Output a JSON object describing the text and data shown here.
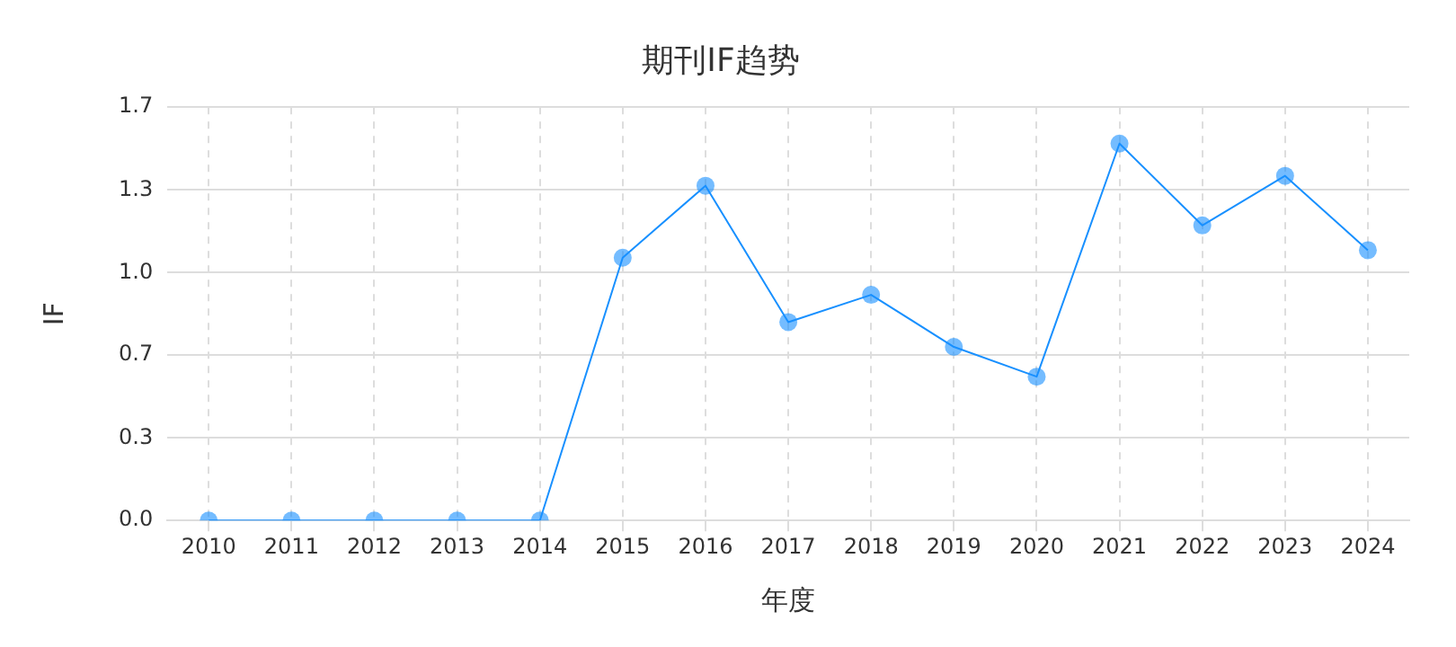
{
  "chart_data": {
    "type": "line",
    "title": "期刊IF趋势",
    "xlabel": "年度",
    "ylabel": "IF",
    "categories": [
      "2010",
      "2011",
      "2012",
      "2013",
      "2014",
      "2015",
      "2016",
      "2017",
      "2018",
      "2019",
      "2020",
      "2021",
      "2022",
      "2023",
      "2024"
    ],
    "series": [
      {
        "color": "#1890ff",
        "values": [
          0,
          0,
          0,
          0,
          0,
          1.06,
          1.35,
          0.8,
          0.91,
          0.7,
          0.58,
          1.52,
          1.19,
          1.39,
          1.09
        ]
      }
    ],
    "ylim": [
      0,
      1.667
    ],
    "yticks": [
      {
        "value": 0,
        "label": "0.0"
      },
      {
        "value": 0.333,
        "label": "0.3"
      },
      {
        "value": 0.667,
        "label": "0.7"
      },
      {
        "value": 1,
        "label": "1.0"
      },
      {
        "value": 1.333,
        "label": "1.3"
      },
      {
        "value": 1.667,
        "label": "1.7"
      }
    ],
    "grid": true,
    "marker": "circle",
    "line_style": "solid",
    "legend": false
  }
}
